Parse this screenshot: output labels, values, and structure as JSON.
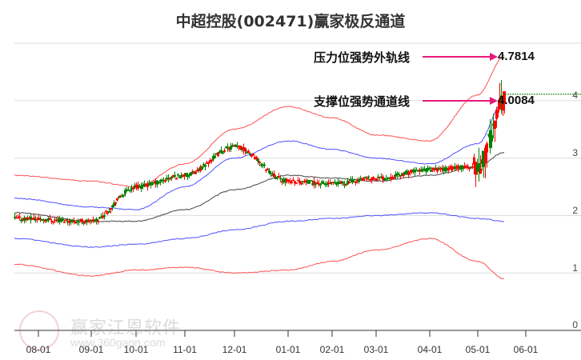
{
  "title": "中超控股(002471)赢家极反通道",
  "annotations": {
    "upper_label": "压力位强势外轨线",
    "upper_value": "4.7814",
    "lower_label": "支撑位强势通道线",
    "lower_value": "4.0084",
    "arrow_color": "#e8197a"
  },
  "watermark": {
    "name": "赢家江恩软件",
    "url": "www.360gann.com"
  },
  "y_axis": {
    "labels": [
      "4",
      "3",
      "2",
      "1",
      "0"
    ]
  },
  "x_axis": {
    "labels": [
      "08-01",
      "09-01",
      "10-01",
      "11-01",
      "12-01",
      "01-01",
      "02-01",
      "03-01",
      "04-01",
      "05-01",
      "06-01"
    ]
  },
  "colors": {
    "up": "#ff0000",
    "down": "#008000",
    "outer_band": "#ff3333",
    "inner_band": "#3333ff",
    "mid": "#222222",
    "grid": "#dddddd"
  },
  "chart_data": {
    "type": "candlestick-with-bands",
    "title": "中超控股(002471)赢家极反通道",
    "xlabel": "",
    "ylabel": "",
    "ylim": [
      0,
      5
    ],
    "grid": true,
    "x_ticks": [
      "08-01",
      "09-01",
      "10-01",
      "11-01",
      "12-01",
      "01-01",
      "02-01",
      "03-01",
      "04-01",
      "05-01",
      "06-01"
    ],
    "y_ticks": [
      0,
      1,
      2,
      3,
      4
    ],
    "series": [
      {
        "name": "upper_outer_band (red)",
        "points_by_month": {
          "08-01": 2.7,
          "09-01": 2.6,
          "10-01": 2.5,
          "11-01": 2.9,
          "12-01": 3.5,
          "01-01": 3.9,
          "02-01": 3.7,
          "03-01": 3.4,
          "04-01": 3.3,
          "05-01": 4.1,
          "end": 4.78
        }
      },
      {
        "name": "upper_inner_band (blue)",
        "points_by_month": {
          "08-01": 2.3,
          "09-01": 2.15,
          "10-01": 2.1,
          "11-01": 2.5,
          "12-01": 3.0,
          "01-01": 3.3,
          "02-01": 3.15,
          "03-01": 3.0,
          "04-01": 2.9,
          "05-01": 3.25,
          "end": 4.0
        }
      },
      {
        "name": "middle_line (black)",
        "points_by_month": {
          "08-01": 2.05,
          "09-01": 1.9,
          "10-01": 1.9,
          "11-01": 2.1,
          "12-01": 2.45,
          "01-01": 2.7,
          "02-01": 2.65,
          "03-01": 2.6,
          "04-01": 2.7,
          "05-01": 2.85,
          "end": 3.1
        }
      },
      {
        "name": "lower_inner_band (blue)",
        "points_by_month": {
          "08-01": 1.6,
          "09-01": 1.45,
          "10-01": 1.5,
          "11-01": 1.6,
          "12-01": 1.75,
          "01-01": 1.9,
          "02-01": 1.95,
          "03-01": 2.0,
          "04-01": 2.05,
          "05-01": 1.95,
          "end": 1.9
        }
      },
      {
        "name": "lower_outer_band (red)",
        "points_by_month": {
          "08-01": 1.15,
          "09-01": 0.95,
          "10-01": 1.05,
          "11-01": 1.1,
          "12-01": 1.0,
          "01-01": 1.05,
          "02-01": 1.2,
          "03-01": 1.4,
          "04-01": 1.6,
          "05-01": 1.2,
          "end": 0.9
        }
      },
      {
        "name": "price_close (approx)",
        "points_by_month": {
          "08-01": 1.95,
          "09-01": 1.9,
          "10-01": 2.5,
          "11-01": 2.7,
          "12-01": 3.2,
          "01-01": 2.6,
          "02-01": 2.55,
          "03-01": 2.65,
          "04-01": 2.8,
          "05-01": 2.85,
          "end": 4.0
        }
      }
    ],
    "annotations": [
      {
        "text": "压力位强势外轨线",
        "value": 4.7814
      },
      {
        "text": "支撑位强势通道线",
        "value": 4.0084
      }
    ]
  }
}
